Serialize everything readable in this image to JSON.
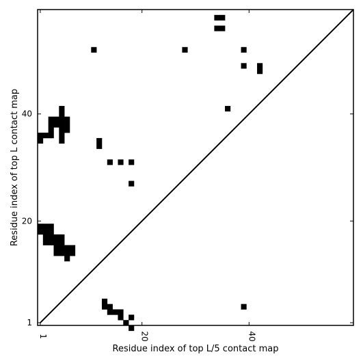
{
  "chart_data": {
    "type": "heatmap",
    "xlabel": "Residue index of top L/5 contact map",
    "ylabel": "Residue index of top L contact map",
    "xlim": [
      0.5,
      59.5
    ],
    "ylim": [
      0.5,
      59.5
    ],
    "xticks": [
      {
        "value": 1,
        "label": "1"
      },
      {
        "value": 20,
        "label": "20"
      },
      {
        "value": 40,
        "label": "40"
      }
    ],
    "yticks": [
      {
        "value": 1,
        "label": "1"
      },
      {
        "value": 20,
        "label": "20"
      },
      {
        "value": 40,
        "label": "40"
      }
    ],
    "diagonal": true,
    "upper_contacts": [
      [
        34,
        58
      ],
      [
        35,
        58
      ],
      [
        34,
        56
      ],
      [
        35,
        56
      ],
      [
        11,
        52
      ],
      [
        28,
        52
      ],
      [
        39,
        52
      ],
      [
        39,
        49
      ],
      [
        42,
        49
      ],
      [
        42,
        48
      ],
      [
        5,
        41
      ],
      [
        36,
        41
      ],
      [
        5,
        40
      ],
      [
        3,
        39
      ],
      [
        4,
        39
      ],
      [
        5,
        39
      ],
      [
        6,
        39
      ],
      [
        3,
        38
      ],
      [
        4,
        38
      ],
      [
        5,
        38
      ],
      [
        6,
        38
      ],
      [
        3,
        37
      ],
      [
        5,
        37
      ],
      [
        6,
        37
      ],
      [
        1,
        36
      ],
      [
        2,
        36
      ],
      [
        3,
        36
      ],
      [
        5,
        36
      ],
      [
        1,
        35
      ],
      [
        5,
        35
      ],
      [
        12,
        35
      ],
      [
        12,
        34
      ],
      [
        14,
        31
      ],
      [
        16,
        31
      ],
      [
        18,
        31
      ],
      [
        18,
        27
      ]
    ],
    "lower_contacts": [
      [
        1,
        19
      ],
      [
        2,
        19
      ],
      [
        3,
        19
      ],
      [
        1,
        18
      ],
      [
        2,
        18
      ],
      [
        3,
        18
      ],
      [
        2,
        17
      ],
      [
        3,
        17
      ],
      [
        4,
        17
      ],
      [
        5,
        17
      ],
      [
        2,
        16
      ],
      [
        3,
        16
      ],
      [
        4,
        16
      ],
      [
        5,
        16
      ],
      [
        4,
        15
      ],
      [
        5,
        15
      ],
      [
        6,
        15
      ],
      [
        7,
        15
      ],
      [
        4,
        14
      ],
      [
        5,
        14
      ],
      [
        6,
        14
      ],
      [
        7,
        14
      ],
      [
        6,
        13
      ],
      [
        13,
        5
      ],
      [
        13,
        4
      ],
      [
        14,
        4
      ],
      [
        14,
        3
      ],
      [
        15,
        3
      ],
      [
        16,
        3
      ],
      [
        16,
        2
      ],
      [
        18,
        2
      ],
      [
        17,
        1
      ],
      [
        18,
        0
      ],
      [
        39,
        4
      ]
    ]
  }
}
